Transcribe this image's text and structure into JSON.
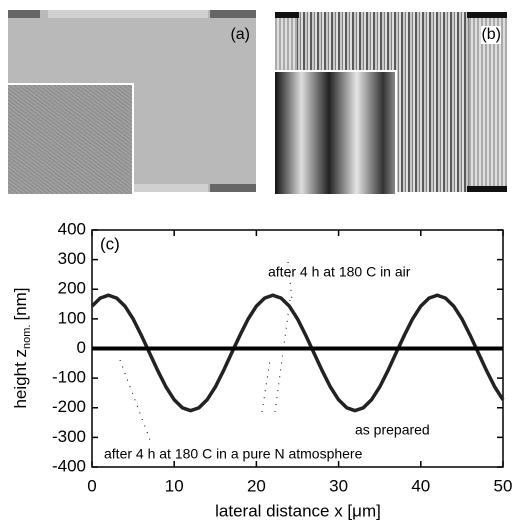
{
  "panels": {
    "a": "(a)",
    "b": "(b)"
  },
  "chart_data": {
    "type": "line",
    "title": "(c)",
    "xlabel": "lateral distance x [μm]",
    "ylabel": "height z",
    "ylabel_sub": "nom.",
    "ylabel_unit": "[nm]",
    "annotations": [
      "after 4 h at 180 C in air",
      "as prepared",
      "after 4 h at 180 C in a pure N atmosphere"
    ],
    "xlim": [
      0,
      50
    ],
    "xticks": [
      0,
      10,
      20,
      30,
      40,
      50
    ],
    "ylim": [
      -400,
      400
    ],
    "yticks": [
      -400,
      -300,
      -200,
      -100,
      0,
      100,
      200,
      300,
      400
    ],
    "series": [
      {
        "color": "#222222",
        "x": [
          0,
          1,
          2,
          3,
          4,
          5,
          6,
          7,
          8,
          9,
          10,
          11,
          12,
          13,
          14,
          15,
          16,
          17,
          18,
          19,
          20,
          21,
          22,
          23,
          24,
          25,
          26,
          27,
          28,
          29,
          30,
          31,
          32,
          33,
          34,
          35,
          36,
          37,
          38,
          39,
          40,
          41,
          42,
          43,
          44,
          45,
          46,
          47,
          48,
          49,
          50
        ],
        "values": [
          143,
          170,
          180,
          170,
          143,
          100,
          45,
          -15,
          -75,
          -130,
          -173,
          -200,
          -210,
          -200,
          -173,
          -130,
          -75,
          -15,
          45,
          100,
          143,
          170,
          180,
          170,
          143,
          100,
          45,
          -15,
          -75,
          -130,
          -173,
          -200,
          -210,
          -200,
          -173,
          -130,
          -75,
          -15,
          45,
          100,
          143,
          170,
          180,
          170,
          143,
          100,
          45,
          -15,
          -75,
          -130,
          -173
        ]
      },
      {
        "color": "#000000",
        "x": [
          0,
          50
        ],
        "values": [
          0,
          0
        ]
      }
    ]
  }
}
